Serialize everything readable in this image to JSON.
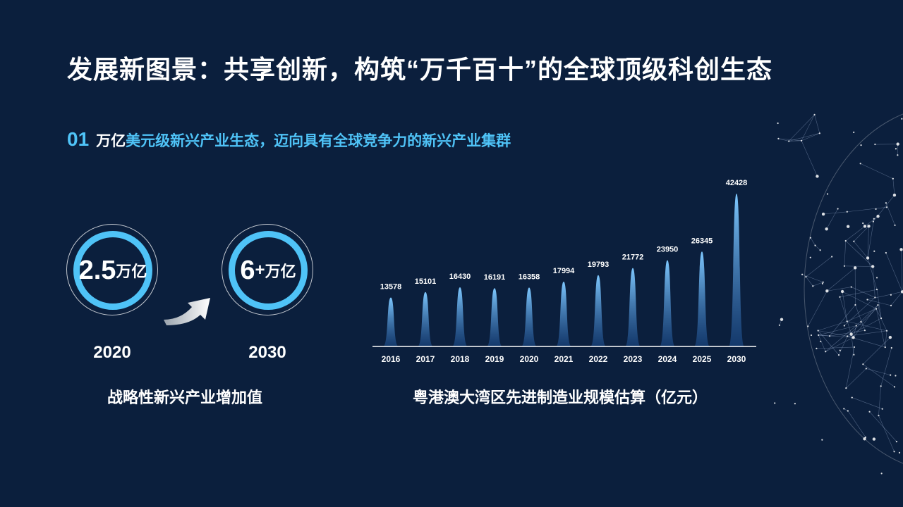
{
  "title": "发展新图景：共享创新，构筑“万千百十”的全球顶级科创生态",
  "section": {
    "number": "01",
    "strong": "万亿",
    "rest": "美元级新兴产业生态，迈向具有全球竞争力的新兴产业集群"
  },
  "left_panel": {
    "circle_2020": {
      "value": "2.5",
      "unit": "万亿",
      "year": "2020"
    },
    "circle_2030": {
      "value": "6",
      "plus": "+",
      "unit": "万亿",
      "year": "2030"
    },
    "caption": "战略性新兴产业增加值"
  },
  "chart_caption": "粤港澳大湾区先进制造业规模估算（亿元）",
  "colors": {
    "accent": "#4fc3f7",
    "background": "#0b1f3d",
    "peak_top": "#7ec8ff",
    "peak_bottom": "#1a4a8a"
  },
  "chart_data": {
    "type": "area",
    "categories": [
      "2016",
      "2017",
      "2018",
      "2019",
      "2020",
      "2021",
      "2022",
      "2023",
      "2024",
      "2025",
      "2030"
    ],
    "values": [
      13578,
      15101,
      16430,
      16191,
      16358,
      17994,
      19793,
      21772,
      23950,
      26345,
      42428
    ],
    "title": "粤港澳大湾区先进制造业规模估算（亿元）",
    "ylim": [
      0,
      42428
    ],
    "grid": false
  }
}
